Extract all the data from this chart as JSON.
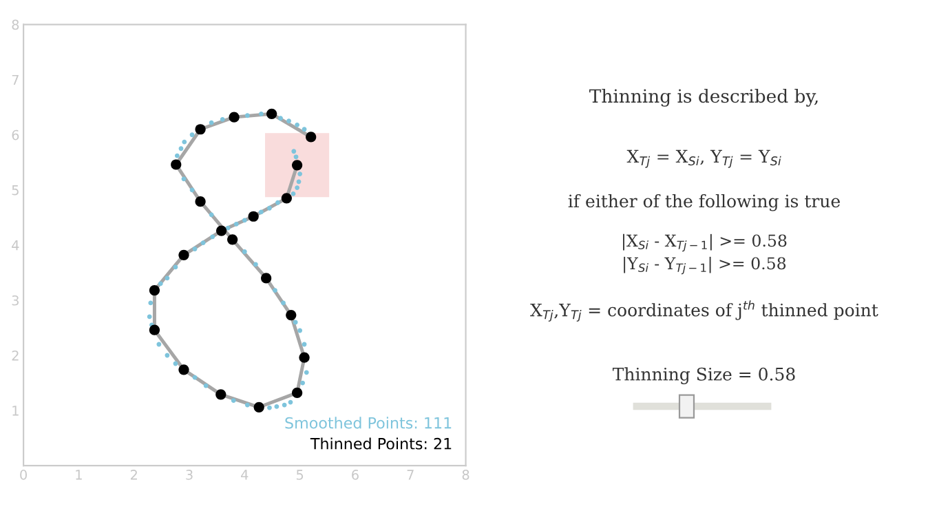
{
  "chart_data": [
    {
      "type": "scatter",
      "xlim": [
        0,
        8
      ],
      "ylim": [
        0,
        8
      ],
      "xticks": [
        0,
        1,
        2,
        3,
        4,
        5,
        6,
        7,
        8
      ],
      "yticks": [
        1,
        2,
        3,
        4,
        5,
        6,
        7,
        8
      ],
      "grid": false,
      "legend": false,
      "series": [
        {
          "type": "area",
          "color": "#f9dcdc",
          "x": [
            4.37,
            5.53,
            5.53,
            4.37
          ],
          "values": [
            4.87,
            4.87,
            6.03,
            6.03
          ]
        },
        {
          "type": "scatter",
          "name": "Smoothed Points: 111",
          "color": "#7ec4dc",
          "marker": "circle",
          "x": [
            4.89,
            4.93,
            5.0,
            4.98,
            4.95,
            4.88,
            4.6,
            4.45,
            4.3,
            4.0,
            3.85,
            3.7,
            3.42,
            3.25,
            3.1,
            2.75,
            2.6,
            2.48,
            2.3,
            2.28,
            2.32,
            2.45,
            2.6,
            2.75,
            3.1,
            3.3,
            3.8,
            4.05,
            4.45,
            4.58,
            4.72,
            4.83,
            5.05,
            5.12,
            5.08,
            5.0,
            4.92,
            4.7,
            4.55,
            4.2,
            4.0,
            3.4,
            3.05,
            2.9,
            2.78,
            2.85,
            2.91,
            3.05,
            3.4,
            3.6,
            4.05,
            4.3,
            4.65,
            4.8,
            4.95,
            5.08
          ],
          "values": [
            5.7,
            5.6,
            5.29,
            5.15,
            5.04,
            4.93,
            4.77,
            4.67,
            4.6,
            4.45,
            4.38,
            4.31,
            4.15,
            4.04,
            3.93,
            3.6,
            3.4,
            3.3,
            2.95,
            2.7,
            2.55,
            2.2,
            2.0,
            1.85,
            1.6,
            1.45,
            1.18,
            1.1,
            1.05,
            1.07,
            1.1,
            1.15,
            1.5,
            1.69,
            2.2,
            2.45,
            2.6,
            2.95,
            3.18,
            3.65,
            3.88,
            4.55,
            5.0,
            5.2,
            5.62,
            5.75,
            5.87,
            6.0,
            6.22,
            6.28,
            6.35,
            6.38,
            6.3,
            6.25,
            6.18,
            6.1
          ]
        },
        {
          "type": "line",
          "color": "#a6a6a6",
          "x": [
            4.95,
            4.76,
            4.16,
            3.58,
            2.9,
            2.37,
            2.37,
            2.9,
            3.57,
            4.26,
            4.95,
            5.08,
            4.84,
            4.39,
            3.78,
            3.2,
            2.76,
            3.2,
            3.81,
            4.49,
            5.2
          ],
          "values": [
            5.45,
            4.85,
            4.52,
            4.26,
            3.82,
            3.18,
            2.46,
            1.74,
            1.29,
            1.06,
            1.32,
            1.96,
            2.73,
            3.4,
            4.1,
            4.79,
            5.46,
            6.1,
            6.32,
            6.38,
            5.96
          ]
        },
        {
          "type": "scatter",
          "name": "Thinned Points: 21",
          "color": "#000000",
          "marker": "circle",
          "x": [
            4.95,
            4.76,
            4.16,
            3.58,
            2.9,
            2.37,
            2.37,
            2.9,
            3.57,
            4.26,
            4.95,
            5.08,
            4.84,
            4.39,
            3.78,
            3.2,
            2.76,
            3.2,
            3.81,
            4.49,
            5.2
          ],
          "values": [
            5.45,
            4.85,
            4.52,
            4.26,
            3.82,
            3.18,
            2.46,
            1.74,
            1.29,
            1.06,
            1.32,
            1.96,
            2.73,
            3.4,
            4.1,
            4.79,
            5.46,
            6.1,
            6.32,
            6.38,
            5.96
          ]
        }
      ]
    },
    {
      "type": "other",
      "title": "Thinning is described by,",
      "annotations": [
        "X$_{Tj}$ = X$_{Si}$, Y$_{Tj}$ = Y$_{Si}$",
        "if either of the following is true",
        "|X$_{Si}$ - X$_{Tj−1}$| >= 0.58",
        "|Y$_{Si}$ - Y$_{Tj−1}$| >= 0.58",
        "X$_{Tj}$,Y$_{Tj}$ = coordinates of j$^{th}$ thinned point",
        "Thinning Size = 0.58"
      ]
    }
  ]
}
